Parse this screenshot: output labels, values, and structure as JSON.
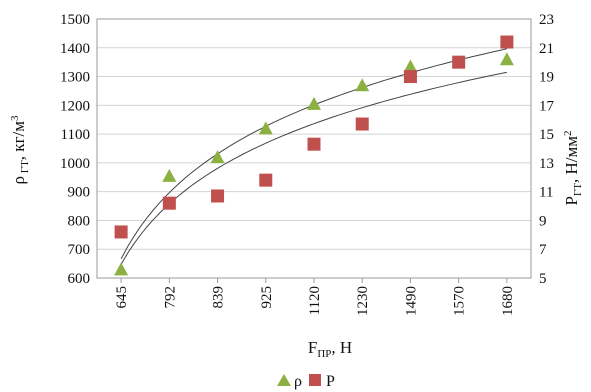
{
  "chart_data": {
    "type": "scatter",
    "categories": [
      "645",
      "792",
      "839",
      "925",
      "1120",
      "1230",
      "1490",
      "1570",
      "1680"
    ],
    "y_left": {
      "min": 600,
      "max": 1500,
      "step": 100
    },
    "y_right": {
      "min": 5,
      "max": 23,
      "step": 2
    },
    "grid": "horizontal",
    "legend_position": "bottom",
    "xlabel": {
      "main": "F",
      "sub": "ПР",
      "unit": ", Н"
    },
    "ylabel_left": {
      "main": "ρ",
      "sub": " ГТ",
      "unit": ", кг/м",
      "sup": "3"
    },
    "ylabel_right": {
      "main": "P",
      "sub": "ГТ",
      "unit": ", Н/мм",
      "sup": "2"
    },
    "series": [
      {
        "name": "ρ",
        "axis": "left",
        "marker": "triangle",
        "color": "#8db043",
        "values": [
          630,
          955,
          1020,
          1120,
          1205,
          1270,
          1335,
          null,
          1360
        ]
      },
      {
        "name": "P",
        "axis": "right",
        "marker": "square",
        "color": "#c0504d",
        "values": [
          8.2,
          10.2,
          10.7,
          11.8,
          14.3,
          15.7,
          19.0,
          20.0,
          21.4
        ]
      }
    ]
  }
}
